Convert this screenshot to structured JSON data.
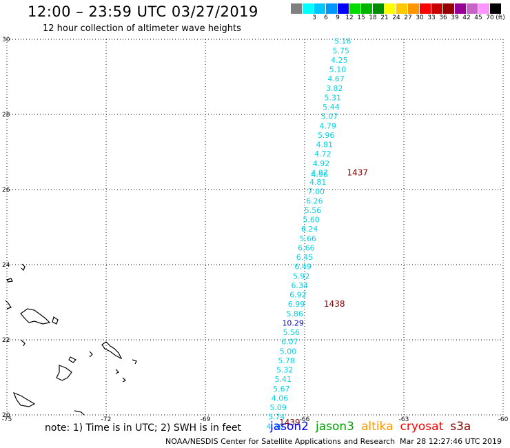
{
  "header": {
    "title": "12:00 – 23:59 UTC 03/27/2019",
    "subtitle": "12 hour collection of altimeter wave heights"
  },
  "legend": {
    "unit": "(ft)",
    "bins": [
      {
        "label": "",
        "color": "#808080"
      },
      {
        "label": "3",
        "color": "#00ffff"
      },
      {
        "label": "6",
        "color": "#00c8ff"
      },
      {
        "label": "9",
        "color": "#0096ff"
      },
      {
        "label": "12",
        "color": "#0000ff"
      },
      {
        "label": "15",
        "color": "#00dc00"
      },
      {
        "label": "18",
        "color": "#00b400"
      },
      {
        "label": "21",
        "color": "#008c00"
      },
      {
        "label": "24",
        "color": "#ffff00"
      },
      {
        "label": "27",
        "color": "#ffc800"
      },
      {
        "label": "30",
        "color": "#ff9600"
      },
      {
        "label": "33",
        "color": "#ff0000"
      },
      {
        "label": "36",
        "color": "#c80000"
      },
      {
        "label": "39",
        "color": "#960000"
      },
      {
        "label": "42",
        "color": "#960096"
      },
      {
        "label": "45",
        "color": "#c864c8"
      },
      {
        "label": "70",
        "color": "#ff96ff"
      },
      {
        "label": "",
        "color": "#000000"
      }
    ]
  },
  "map": {
    "lon_range": [
      -75,
      -60
    ],
    "lat_range": [
      20,
      30
    ],
    "lon_ticks": [
      "-75",
      "-72",
      "-69",
      "-66",
      "-63",
      "-60"
    ],
    "lat_ticks": [
      "20",
      "22",
      "24",
      "26",
      "28",
      "30"
    ],
    "grid_color": "#000000",
    "track_color": "#00d2e6",
    "track": [
      {
        "value": "5.16",
        "lat": 29.95,
        "lon": -64.85
      },
      {
        "value": "5.75",
        "lat": 29.7,
        "lon": -64.9
      },
      {
        "value": "4.25",
        "lat": 29.45,
        "lon": -64.95
      },
      {
        "value": "5.10",
        "lat": 29.2,
        "lon": -65.0
      },
      {
        "value": "4.67",
        "lat": 28.95,
        "lon": -65.05
      },
      {
        "value": "3.82",
        "lat": 28.7,
        "lon": -65.1
      },
      {
        "value": "5.31",
        "lat": 28.45,
        "lon": -65.15
      },
      {
        "value": "5.44",
        "lat": 28.2,
        "lon": -65.2
      },
      {
        "value": "5.07",
        "lat": 27.95,
        "lon": -65.25
      },
      {
        "value": "4.79",
        "lat": 27.7,
        "lon": -65.3
      },
      {
        "value": "5.96",
        "lat": 27.45,
        "lon": -65.35
      },
      {
        "value": "4.81",
        "lat": 27.2,
        "lon": -65.4
      },
      {
        "value": "4.72",
        "lat": 26.95,
        "lon": -65.45
      },
      {
        "value": "4.92",
        "lat": 26.7,
        "lon": -65.5
      },
      {
        "value": "4.97",
        "lat": 26.45,
        "lon": -65.55
      },
      {
        "value": "4.96",
        "lat": 26.4,
        "lon": -65.55
      },
      {
        "value": "4.81",
        "lat": 26.2,
        "lon": -65.6
      },
      {
        "value": "7.00",
        "lat": 25.95,
        "lon": -65.65
      },
      {
        "value": "6.26",
        "lat": 25.7,
        "lon": -65.7
      },
      {
        "value": "5.56",
        "lat": 25.45,
        "lon": -65.75
      },
      {
        "value": "5.60",
        "lat": 25.2,
        "lon": -65.8
      },
      {
        "value": "6.24",
        "lat": 24.95,
        "lon": -65.85
      },
      {
        "value": "5.66",
        "lat": 24.7,
        "lon": -65.9
      },
      {
        "value": "6.66",
        "lat": 24.45,
        "lon": -65.95
      },
      {
        "value": "6.45",
        "lat": 24.2,
        "lon": -66.0
      },
      {
        "value": "6.49",
        "lat": 23.95,
        "lon": -66.05
      },
      {
        "value": "5.92",
        "lat": 23.7,
        "lon": -66.1
      },
      {
        "value": "6.34",
        "lat": 23.45,
        "lon": -66.15
      },
      {
        "value": "6.92",
        "lat": 23.2,
        "lon": -66.2
      },
      {
        "value": "6.99",
        "lat": 22.95,
        "lon": -66.25
      },
      {
        "value": "5.86",
        "lat": 22.7,
        "lon": -66.3
      },
      {
        "value": "10.29",
        "lat": 22.45,
        "lon": -66.35
      },
      {
        "value": "5.56",
        "lat": 22.2,
        "lon": -66.4
      },
      {
        "value": "6.07",
        "lat": 21.95,
        "lon": -66.45
      },
      {
        "value": "5.00",
        "lat": 21.7,
        "lon": -66.5
      },
      {
        "value": "5.78",
        "lat": 21.45,
        "lon": -66.55
      },
      {
        "value": "5.32",
        "lat": 21.2,
        "lon": -66.6
      },
      {
        "value": "5.41",
        "lat": 20.95,
        "lon": -66.65
      },
      {
        "value": "5.67",
        "lat": 20.7,
        "lon": -66.7
      },
      {
        "value": "4.06",
        "lat": 20.45,
        "lon": -66.75
      },
      {
        "value": "5.09",
        "lat": 20.2,
        "lon": -66.8
      },
      {
        "value": "5.74",
        "lat": 19.95,
        "lon": -66.85
      },
      {
        "value": "4.39",
        "lat": 19.7,
        "lon": -66.9
      }
    ],
    "highlight": {
      "value": "10.29",
      "color": "#0000c8"
    },
    "times": [
      {
        "label": "1437",
        "lat": 26.45,
        "lon": -64.4
      },
      {
        "label": "1438",
        "lat": 22.95,
        "lon": -65.1
      },
      {
        "label": "1439",
        "lat": 19.8,
        "lon": -66.45
      }
    ],
    "time_color": "#800000"
  },
  "footer": {
    "note": "note: 1) Time is in UTC; 2) SWH is in feet",
    "satellites": [
      {
        "name": "jason2",
        "color": "#0000ff"
      },
      {
        "name": "jason3",
        "color": "#00a000"
      },
      {
        "name": "altika",
        "color": "#ff9600"
      },
      {
        "name": "cryosat",
        "color": "#ff0000"
      },
      {
        "name": "s3a",
        "color": "#800000"
      }
    ],
    "credit": "NOAA/NESDIS Center for Satellite Applications and Research",
    "timestamp": "Mar 28 12:27:46 UTC 2019"
  }
}
